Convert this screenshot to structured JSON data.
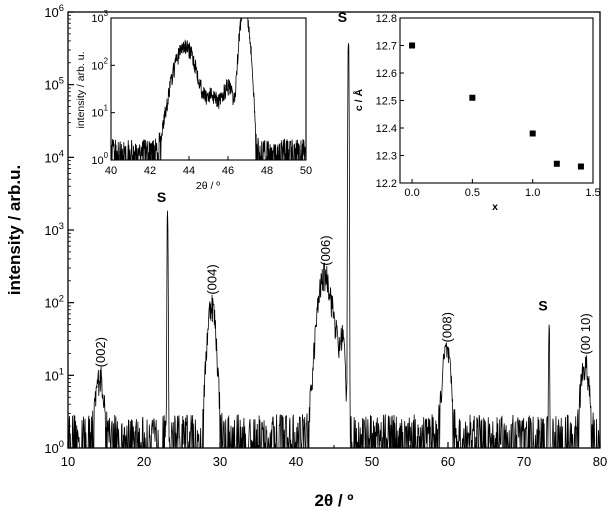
{
  "chart_data": [
    {
      "type": "line",
      "role": "main",
      "title": "",
      "xlabel": "2θ / º",
      "ylabel": "intensity / arb.u.",
      "xlim": [
        10,
        80
      ],
      "ylim": [
        1,
        1000000
      ],
      "yscale": "log",
      "x_ticks": [
        10,
        20,
        30,
        40,
        50,
        60,
        70,
        80
      ],
      "y_ticks": [
        {
          "value": 1,
          "base": "10",
          "exp": "0"
        },
        {
          "value": 10,
          "base": "10",
          "exp": "1"
        },
        {
          "value": 100,
          "base": "10",
          "exp": "2"
        },
        {
          "value": 1000,
          "base": "10",
          "exp": "3"
        },
        {
          "value": 10000,
          "base": "10",
          "exp": "4"
        },
        {
          "value": 100000,
          "base": "10",
          "exp": "5"
        },
        {
          "value": 1000000,
          "base": "10",
          "exp": "6"
        }
      ],
      "peaks": [
        {
          "x": 14.2,
          "y": 10,
          "label": "(002)"
        },
        {
          "x": 28.9,
          "y": 100,
          "label": "(004)"
        },
        {
          "x": 43.8,
          "y": 250,
          "label": "(006)"
        },
        {
          "x": 59.8,
          "y": 22,
          "label": "(008)"
        },
        {
          "x": 78.0,
          "y": 15,
          "label": "(00 10)"
        }
      ],
      "substrate_peaks": [
        {
          "x": 23.1,
          "y": 2000,
          "label": "S"
        },
        {
          "x": 46.9,
          "y": 600000,
          "label": "S"
        },
        {
          "x": 73.3,
          "y": 65,
          "label": "S"
        }
      ]
    },
    {
      "type": "line",
      "role": "inset-left",
      "xlabel": "2θ / º",
      "ylabel": "intensity / arb. u.",
      "xlim": [
        40,
        50
      ],
      "ylim": [
        1,
        1000
      ],
      "yscale": "log",
      "x_ticks": [
        40,
        42,
        44,
        46,
        48,
        50
      ],
      "y_ticks": [
        {
          "value": 1,
          "base": "10",
          "exp": "0"
        },
        {
          "value": 10,
          "base": "10",
          "exp": "1"
        },
        {
          "value": 100,
          "base": "10",
          "exp": "2"
        },
        {
          "value": 1000,
          "base": "10",
          "exp": "3"
        }
      ]
    },
    {
      "type": "scatter",
      "role": "inset-right",
      "xlabel": "x",
      "ylabel": "c / Å",
      "xlim": [
        -0.1,
        1.5
      ],
      "ylim": [
        12.2,
        12.8
      ],
      "x_ticks": [
        "0.0",
        "0.5",
        "1.0",
        "1.5"
      ],
      "y_ticks": [
        "12.2",
        "12.3",
        "12.4",
        "12.5",
        "12.6",
        "12.7",
        "12.8"
      ],
      "x": [
        0.0,
        0.5,
        1.0,
        1.2,
        1.4
      ],
      "y": [
        12.7,
        12.51,
        12.38,
        12.27,
        12.26
      ]
    }
  ]
}
